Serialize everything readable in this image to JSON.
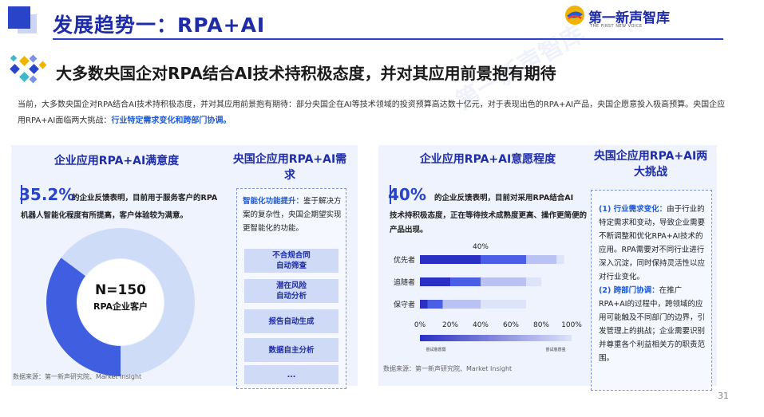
{
  "header": {
    "title": "发展趋势一：RPA+AI",
    "brand_name": "第一新声智库",
    "brand_sub": "THE FIRST NEW VOICE",
    "accent": "#1f2ca8"
  },
  "section": {
    "heading": "大多数央国企对RPA结合AI技术持积极态度，并对其应用前景抱有期待"
  },
  "intro": {
    "text": "当前，大多数央国企对RPA结合AI技术持积极态度，并对其应用前景抱有期待：部分央国企在AI等技术领域的投资预算高达数十亿元，对于表现出色的RPA+AI产品，央国企愿意投入极高预算。央国企应用RPA+AI面临两大挑战：",
    "highlight": "行业特定需求变化和跨部门协调。"
  },
  "satisfaction": {
    "title": "企业应用RPA+AI满意度",
    "pct": "35.2%",
    "desc1": "的企业反馈表明，目前用于服务客户的RPA",
    "desc2": "机器人智能化程度有所提高，客户体验较为满意。",
    "n_label": "N=150",
    "n_caption": "RPA企业客户",
    "value": 35.2,
    "source": "数据来源：第一新声研究院、Market Insight"
  },
  "demand": {
    "title": "央国企应用RPA+AI需求",
    "lead": "智能化功能提升：",
    "body": "鉴于解决方案的复杂性，央国企期望实现更智能化的功能。",
    "items": [
      "不合规合同\n自动筛查",
      "潜在风险\n自动分析",
      "报告自动生成",
      "数据自主分析",
      "..."
    ]
  },
  "willingness": {
    "title": "企业应用RPA+AI意愿程度",
    "pct": "40%",
    "desc1": "的企业反馈表明，目前对采用RPA结合AI",
    "desc2": "技术持积极态度，正在等待技术成熟度更高、操作更简便的产品出现。",
    "source": "数据来源：第一新声研究院、Market Insight"
  },
  "chart_data": {
    "type": "bar",
    "orientation": "horizontal",
    "stacked": true,
    "categories": [
      "优先者",
      "追随者",
      "保守者"
    ],
    "series": [
      {
        "values": [
          40,
          20,
          5
        ],
        "color": "#2c2fc4"
      },
      {
        "values": [
          30,
          20,
          10
        ],
        "color": "#4a5fe6"
      },
      {
        "values": [
          20,
          30,
          25
        ],
        "color": "#b9c2f2"
      },
      {
        "values": [
          5,
          10,
          30
        ],
        "color": "#dde3f8"
      }
    ],
    "annotation": "40%",
    "xticks": [
      "0%",
      "20%",
      "40%",
      "60%",
      "80%",
      "100%"
    ],
    "xlim": [
      0,
      100
    ],
    "legend_left": "尝试意愿弱",
    "legend_right": "尝试意愿强"
  },
  "challenges": {
    "title": "央国企应用RPA+AI两大挑战",
    "c1_lead": "(1) 行业需求变化：",
    "c1_body": "由于行业的特定需求和变动，导致企业需要不断调整和优化RPA+AI技术的应用。RPA需要对不同行业进行深入沉淀，同时保持灵活性以应对行业变化。",
    "c2_lead": "(2) 跨部门协调：",
    "c2_body": "在推广RPA+AI的过程中，跨领域的应用可能触及不同部门的边界，引发管理上的挑战；企业需要识别并尊重各个利益相关方的职责范围。"
  },
  "page_number": "31"
}
